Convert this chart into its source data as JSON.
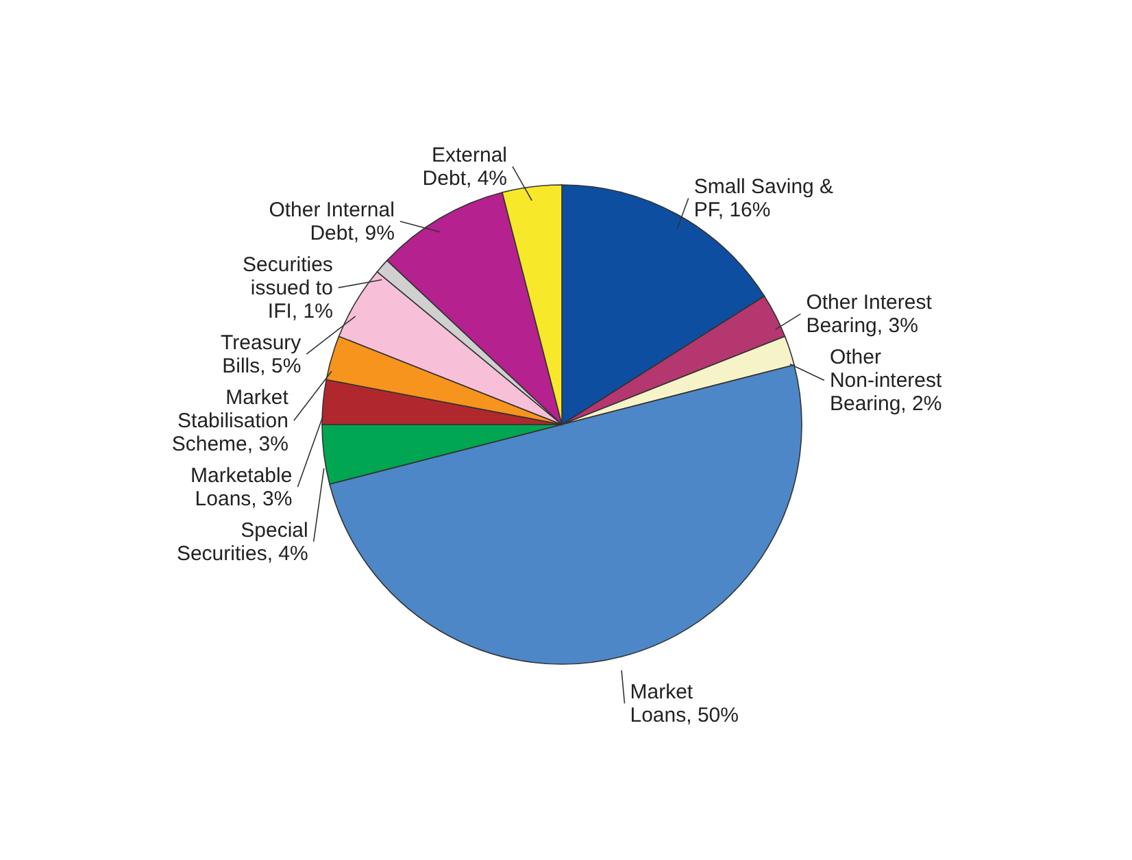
{
  "chart_data": {
    "type": "pie",
    "categories": [
      "Small Saving & PF",
      "Other Interest Bearing",
      "Other Non-interest Bearing",
      "Market Loans",
      "Special Securities",
      "Marketable Loans",
      "Market Stabilisation Scheme",
      "Treasury Bills",
      "Securities issued to IFI",
      "Other Internal Debt",
      "External Debt"
    ],
    "values": [
      16,
      3,
      2,
      50,
      4,
      3,
      3,
      5,
      1,
      9,
      4
    ],
    "colors": [
      "#0d4ea0",
      "#b5376f",
      "#f7f3c8",
      "#4d87c7",
      "#00a651",
      "#b0282e",
      "#f7941d",
      "#f7c0d8",
      "#d0d0d0",
      "#b5218f",
      "#f7e82a"
    ],
    "value_labels": [
      "16%",
      "3%",
      "2%",
      "50%",
      "4%",
      "3%",
      "3%",
      "5%",
      "1%",
      "9%",
      "4%"
    ]
  }
}
